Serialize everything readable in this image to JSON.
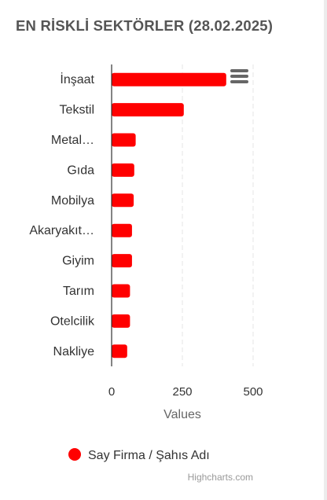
{
  "title": "EN RİSKLİ SEKTÖRLER (28.02.2025)",
  "menu_icon": "hamburger-menu-icon",
  "credits": "Highcharts.com",
  "colors": {
    "bar": "#ff0000",
    "axis_text": "#333333",
    "title": "#555555",
    "grid": "#e6e6e6",
    "credits": "#999999"
  },
  "chart_data": {
    "type": "bar",
    "orientation": "horizontal",
    "categories": [
      "İnşaat",
      "Tekstil",
      "Metal…",
      "Gıda",
      "Mobilya",
      "Akaryakıt…",
      "Giyim",
      "Tarım",
      "Otelcilik",
      "Nakliye"
    ],
    "series": [
      {
        "name": "Say Firma / Şahıs Adı",
        "values": [
          405,
          255,
          85,
          80,
          78,
          72,
          72,
          65,
          65,
          55
        ]
      }
    ],
    "xlabel": "Values",
    "xlim": [
      0,
      500
    ],
    "ticks": [
      0,
      250,
      500
    ],
    "grid": true,
    "grid_style": "dashed",
    "legend_position": "bottom-left"
  }
}
